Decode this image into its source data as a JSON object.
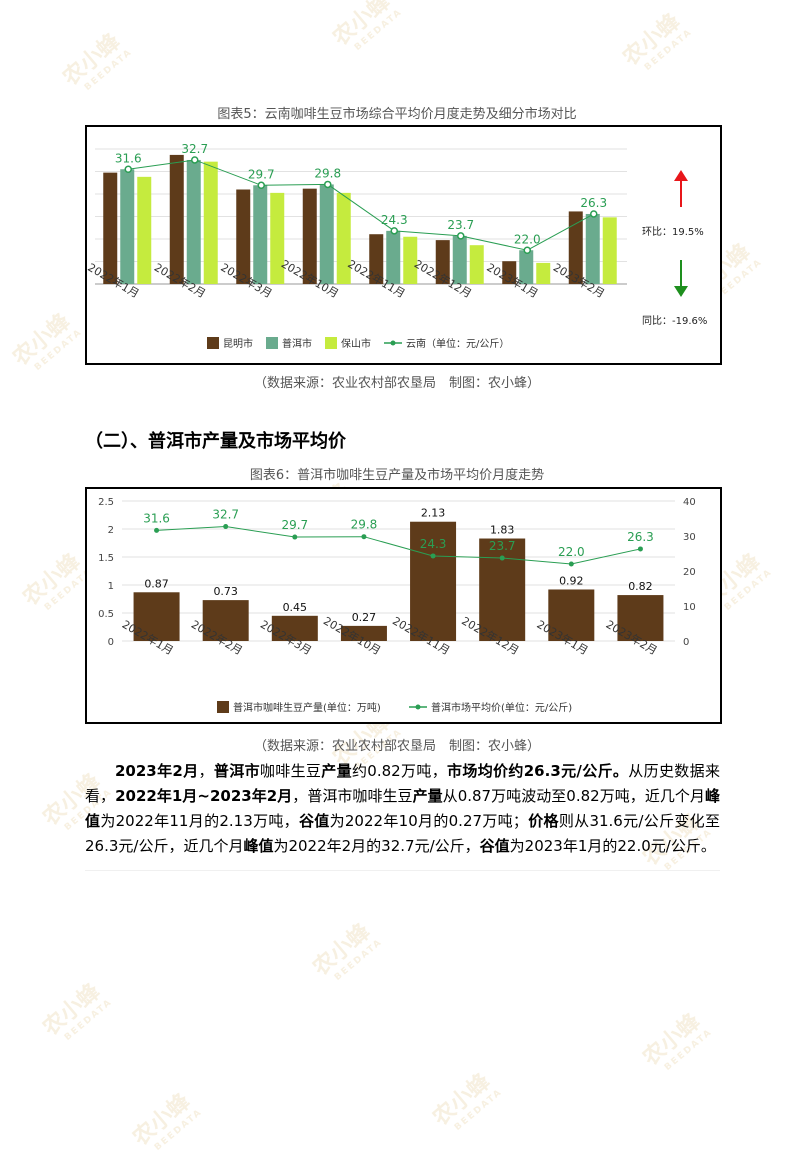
{
  "watermark": {
    "text": "农小蜂",
    "sub": "BEEDATA"
  },
  "chart5": {
    "caption": "图表5：云南咖啡生豆市场综合平均价月度走势及细分市场对比",
    "source": "（数据来源：农业农村部农垦局　制图：农小蜂）",
    "side": {
      "huan_label": "环比：",
      "huan_value": "19.5%",
      "tong_label": "同比：",
      "tong_value": "-19.6%",
      "up_color": "#e8161a",
      "down_color": "#1e8f1e"
    }
  },
  "section": {
    "heading": "（二）、普洱市产量及市场平均价"
  },
  "chart6": {
    "caption": "图表6：普洱市咖啡生豆产量及市场平均价月度走势",
    "source": "（数据来源：农业农村部农垦局　制图：农小蜂）"
  },
  "paragraph": [
    {
      "t": "2023年2月",
      "b": true
    },
    {
      "t": "，",
      "b": false
    },
    {
      "t": "普洱市",
      "b": true
    },
    {
      "t": "咖啡生豆",
      "b": false
    },
    {
      "t": "产量",
      "b": true
    },
    {
      "t": "约0.82万吨，",
      "b": false
    },
    {
      "t": "市场均价",
      "b": true
    },
    {
      "t": "约26.3元/公斤。",
      "b": true
    },
    {
      "t": "从历史数据来看，",
      "b": false
    },
    {
      "t": "2022年1月~2023年2月",
      "b": true
    },
    {
      "t": "，普洱市咖啡生豆",
      "b": false
    },
    {
      "t": "产量",
      "b": true
    },
    {
      "t": "从0.87万吨波动至0.82万吨，近几个月",
      "b": false
    },
    {
      "t": "峰值",
      "b": true
    },
    {
      "t": "为2022年11月的2.13万吨，",
      "b": false
    },
    {
      "t": "谷值",
      "b": true
    },
    {
      "t": "为2022年10月的0.27万吨；",
      "b": false
    },
    {
      "t": "价格",
      "b": true
    },
    {
      "t": "则从31.6元/公斤变化至26.3元/公斤，近几个月",
      "b": false
    },
    {
      "t": "峰值",
      "b": true
    },
    {
      "t": "为2022年2月的32.7元/公斤，",
      "b": false
    },
    {
      "t": "谷值",
      "b": true
    },
    {
      "t": "为2023年1月的22.0元/公斤。",
      "b": false
    }
  ],
  "chart_data": [
    {
      "type": "bar",
      "categories": [
        "2022年1月",
        "2022年2月",
        "2022年3月",
        "2022年10月",
        "2022年11月",
        "2022年12月",
        "2023年1月",
        "2023年2月"
      ],
      "series": [
        {
          "name": "昆明市",
          "type": "bar",
          "color": "#5e3b1a",
          "values": [
            31.2,
            33.3,
            29.2,
            29.3,
            23.9,
            23.2,
            20.7,
            26.6
          ]
        },
        {
          "name": "普洱市",
          "type": "bar",
          "color": "#6aab8e",
          "values": [
            31.6,
            32.7,
            29.7,
            29.8,
            24.3,
            23.7,
            22.0,
            26.3
          ]
        },
        {
          "name": "保山市",
          "type": "bar",
          "color": "#c5eb3e",
          "values": [
            30.7,
            32.5,
            28.8,
            28.8,
            23.6,
            22.6,
            20.5,
            25.9
          ]
        },
        {
          "name": "云南（单位：元/公斤）",
          "type": "line",
          "color": "#2a9e53",
          "values": [
            31.6,
            32.7,
            29.7,
            29.8,
            24.3,
            23.7,
            22.0,
            26.3
          ],
          "labels": [
            "31.6",
            "32.7",
            "29.7",
            "29.8",
            "24.3",
            "23.7",
            "22.0",
            "26.3"
          ]
        }
      ],
      "ylim": [
        18,
        34
      ],
      "grid": true,
      "legend": "bottom"
    },
    {
      "type": "bar",
      "categories": [
        "2022年1月",
        "2022年2月",
        "2022年3月",
        "2022年10月",
        "2022年11月",
        "2022年12月",
        "2023年1月",
        "2023年2月"
      ],
      "series": [
        {
          "name": "普洱市咖啡生豆产量(单位：万吨)",
          "type": "bar",
          "axis": "left",
          "color": "#5e3b1a",
          "values": [
            0.87,
            0.73,
            0.45,
            0.27,
            2.13,
            1.83,
            0.92,
            0.82
          ],
          "labels": [
            "0.87",
            "0.73",
            "0.45",
            "0.27",
            "2.13",
            "1.83",
            "0.92",
            "0.82"
          ]
        },
        {
          "name": "普洱市场平均价(单位：元/公斤)",
          "type": "line",
          "axis": "right",
          "color": "#2a9e53",
          "values": [
            31.6,
            32.7,
            29.7,
            29.8,
            24.3,
            23.7,
            22.0,
            26.3
          ],
          "labels": [
            "31.6",
            "32.7",
            "29.7",
            "29.8",
            "24.3",
            "23.7",
            "22.0",
            "26.3"
          ]
        }
      ],
      "y_left": {
        "range": [
          0,
          2.5
        ],
        "ticks": [
          "0",
          "0.5",
          "1",
          "1.5",
          "2",
          "2.5"
        ]
      },
      "y_right": {
        "range": [
          0,
          40
        ],
        "ticks": [
          "0",
          "10",
          "20",
          "30",
          "40"
        ]
      },
      "grid": true,
      "legend": "bottom"
    }
  ]
}
